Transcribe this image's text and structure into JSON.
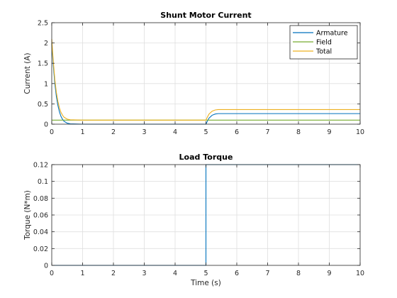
{
  "chart_data": [
    {
      "type": "line",
      "title": "Shunt Motor Current",
      "xlabel": "",
      "ylabel": "Current (A)",
      "xlim": [
        0,
        10
      ],
      "ylim": [
        0,
        2.5
      ],
      "xticks": [
        0,
        1,
        2,
        3,
        4,
        5,
        6,
        7,
        8,
        9,
        10
      ],
      "yticks": [
        0,
        0.5,
        1,
        1.5,
        2,
        2.5
      ],
      "grid": true,
      "legend": "top-right",
      "series": [
        {
          "name": "Armature",
          "color": "#0072BD",
          "x": [
            0,
            0.05,
            0.1,
            0.15,
            0.2,
            0.25,
            0.3,
            0.35,
            0.4,
            0.5,
            0.6,
            1,
            5,
            5.05,
            5.1,
            5.2,
            5.3,
            5.4,
            6,
            10
          ],
          "y": [
            2.0,
            1.45,
            1.0,
            0.68,
            0.46,
            0.3,
            0.19,
            0.12,
            0.07,
            0.025,
            0.008,
            0,
            0,
            0.08,
            0.15,
            0.22,
            0.25,
            0.26,
            0.26,
            0.26
          ]
        },
        {
          "name": "Field",
          "color": "#77AC30",
          "x": [
            0,
            10
          ],
          "y": [
            0.1,
            0.1
          ]
        },
        {
          "name": "Total",
          "color": "#EDB120",
          "x": [
            0,
            0.05,
            0.1,
            0.15,
            0.2,
            0.25,
            0.3,
            0.35,
            0.4,
            0.5,
            0.6,
            1,
            5,
            5.05,
            5.1,
            5.2,
            5.3,
            5.4,
            6,
            10
          ],
          "y": [
            2.1,
            1.55,
            1.1,
            0.78,
            0.56,
            0.4,
            0.29,
            0.22,
            0.17,
            0.125,
            0.108,
            0.1,
            0.1,
            0.18,
            0.25,
            0.32,
            0.35,
            0.36,
            0.36,
            0.36
          ]
        }
      ]
    },
    {
      "type": "line",
      "title": "Load Torque",
      "xlabel": "Time (s)",
      "ylabel": "Torque (N*m)",
      "xlim": [
        0,
        10
      ],
      "ylim": [
        0,
        0.12
      ],
      "xticks": [
        0,
        1,
        2,
        3,
        4,
        5,
        6,
        7,
        8,
        9,
        10
      ],
      "yticks": [
        0,
        0.02,
        0.04,
        0.06,
        0.08,
        0.1,
        0.12
      ],
      "grid": true,
      "series": [
        {
          "color": "#0072BD",
          "x": [
            0,
            5,
            5,
            10
          ],
          "y": [
            0,
            0,
            0.12,
            0.12
          ]
        }
      ]
    }
  ]
}
